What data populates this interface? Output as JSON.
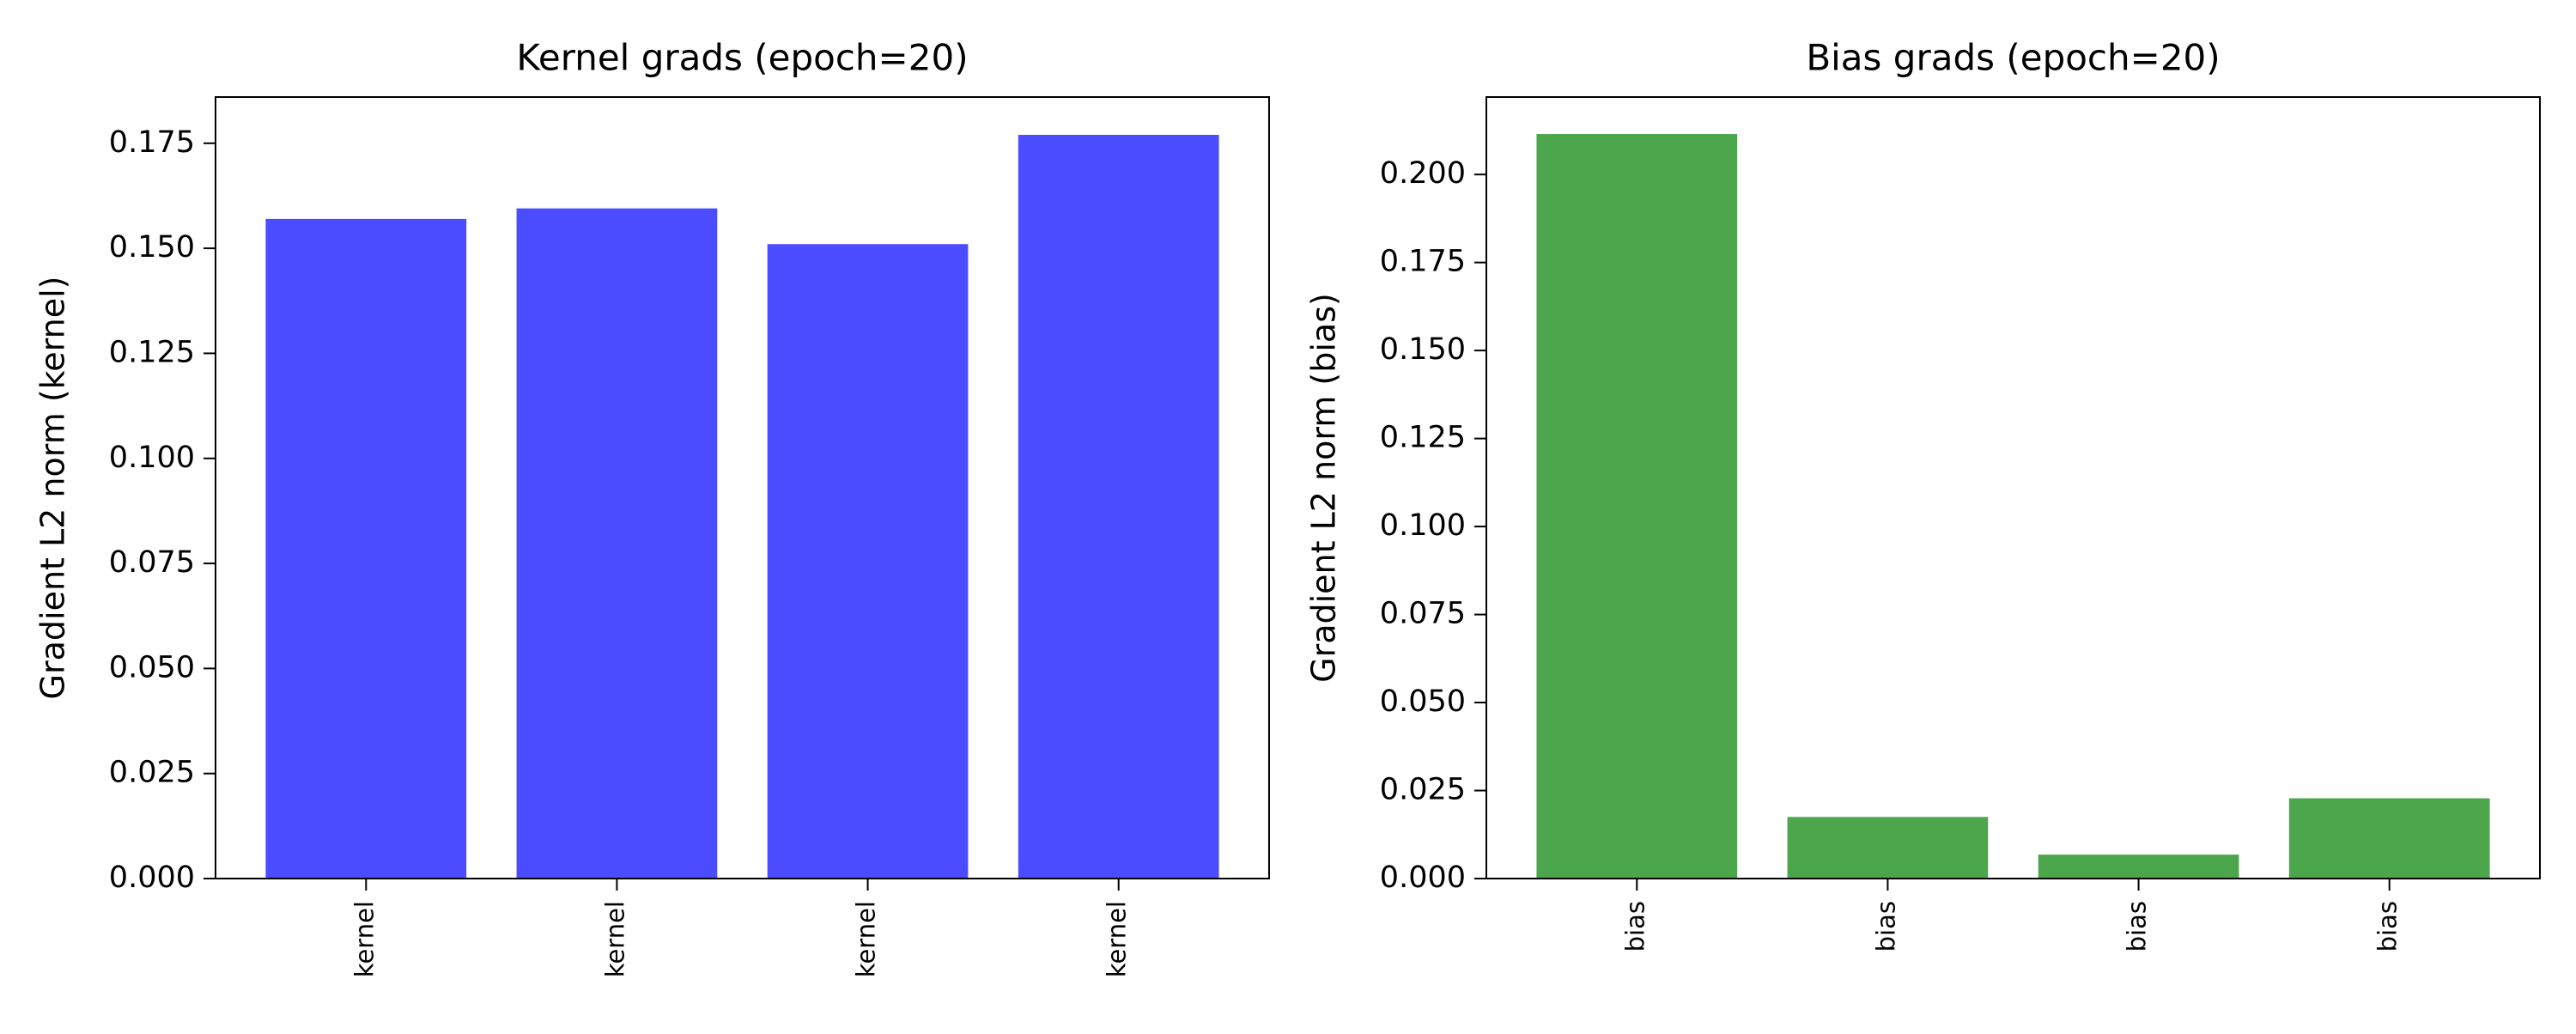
{
  "chart_data": [
    {
      "type": "bar",
      "title": "Kernel grads (epoch=20)",
      "xlabel": "",
      "ylabel": "Gradient L2 norm (kernel)",
      "categories": [
        "kernel",
        "kernel",
        "kernel",
        "kernel"
      ],
      "values": [
        0.157,
        0.1595,
        0.151,
        0.177
      ],
      "ylim": [
        0,
        0.186
      ],
      "yticks": [
        "0.000",
        "0.025",
        "0.050",
        "0.075",
        "0.100",
        "0.125",
        "0.150",
        "0.175"
      ],
      "ytick_values": [
        0,
        0.025,
        0.05,
        0.075,
        0.1,
        0.125,
        0.15,
        0.175
      ],
      "color": "#4b4bff",
      "grid": false,
      "legend": "none"
    },
    {
      "type": "bar",
      "title": "Bias grads (epoch=20)",
      "xlabel": "",
      "ylabel": "Gradient L2 norm (bias)",
      "categories": [
        "bias",
        "bias",
        "bias",
        "bias"
      ],
      "values": [
        0.2115,
        0.0175,
        0.0068,
        0.0228
      ],
      "ylim": [
        0,
        0.222
      ],
      "yticks": [
        "0.000",
        "0.025",
        "0.050",
        "0.075",
        "0.100",
        "0.125",
        "0.150",
        "0.175",
        "0.200"
      ],
      "ytick_values": [
        0,
        0.025,
        0.05,
        0.075,
        0.1,
        0.125,
        0.15,
        0.175,
        0.2
      ],
      "color": "#4ca64c",
      "grid": false,
      "legend": "none"
    }
  ]
}
